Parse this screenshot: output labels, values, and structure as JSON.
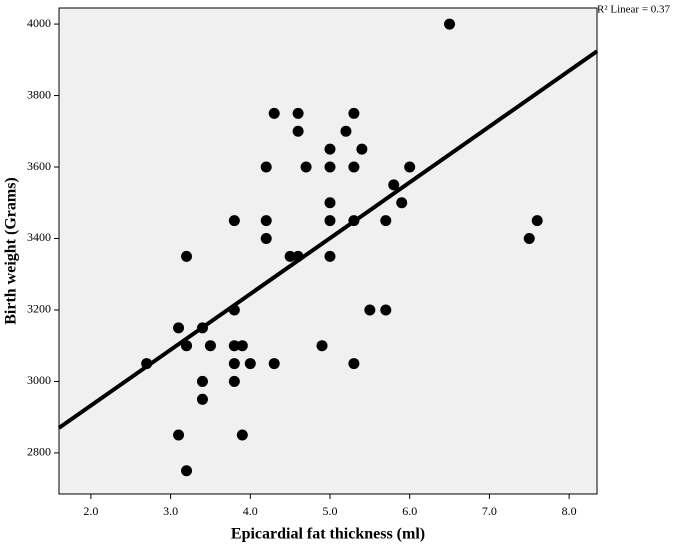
{
  "chart_data": {
    "type": "scatter",
    "x_label": "Epicardial fat thickness (ml)",
    "y_label": "Birth weight (Grams)",
    "annotation": "R² Linear = 0.37",
    "xlim": [
      1.6,
      8.35
    ],
    "ylim": [
      2685,
      4045
    ],
    "xticks": [
      {
        "value": 2,
        "label": "2.0"
      },
      {
        "value": 3,
        "label": "3.0"
      },
      {
        "value": 4,
        "label": "4.0"
      },
      {
        "value": 5,
        "label": "5.0"
      },
      {
        "value": 6,
        "label": "6.0"
      },
      {
        "value": 7,
        "label": "7.0"
      },
      {
        "value": 8,
        "label": "8.0"
      }
    ],
    "yticks": [
      2800,
      3000,
      3200,
      3400,
      3600,
      3800,
      4000
    ],
    "background": "#f0f0f0",
    "color": "#000000",
    "x": [
      6.5,
      4.3,
      4.6,
      5.3,
      4.6,
      5.2,
      5.0,
      5.4,
      4.2,
      4.7,
      5.0,
      5.3,
      6.0,
      5.8,
      5.0,
      5.9,
      3.8,
      4.2,
      5.0,
      5.3,
      5.7,
      7.6,
      4.2,
      7.5,
      3.2,
      4.5,
      4.6,
      5.0,
      3.8,
      5.5,
      5.7,
      3.1,
      3.4,
      3.2,
      3.5,
      3.8,
      3.9,
      4.9,
      2.7,
      3.8,
      4.0,
      4.3,
      5.3,
      3.4,
      3.8,
      3.4,
      3.1,
      3.9,
      3.2
    ],
    "values": [
      4000,
      3750,
      3750,
      3750,
      3700,
      3700,
      3650,
      3650,
      3600,
      3600,
      3600,
      3600,
      3600,
      3550,
      3500,
      3500,
      3450,
      3450,
      3450,
      3450,
      3450,
      3450,
      3400,
      3400,
      3350,
      3350,
      3350,
      3350,
      3200,
      3200,
      3200,
      3150,
      3150,
      3100,
      3100,
      3100,
      3100,
      3100,
      3050,
      3050,
      3050,
      3050,
      3050,
      3000,
      3000,
      2950,
      2850,
      2850,
      2750
    ],
    "fit": {
      "x": [
        1.6,
        8.35
      ],
      "y": [
        2870,
        3924
      ]
    }
  }
}
